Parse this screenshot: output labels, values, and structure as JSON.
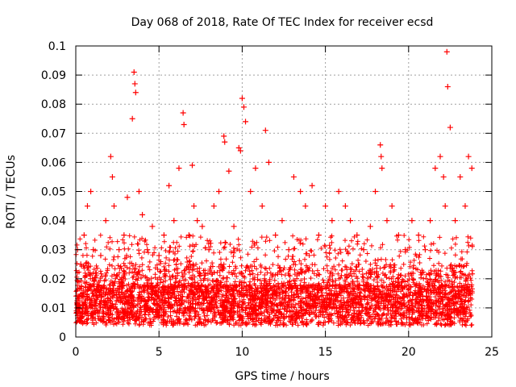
{
  "chart_data": {
    "type": "scatter",
    "title": "Day 068 of 2018, Rate Of TEC Index for receiver ecsd",
    "xlabel": "GPS time / hours",
    "ylabel": "ROTI / TECUs",
    "xlim": [
      0,
      25
    ],
    "ylim": [
      0,
      0.1
    ],
    "x_ticks": [
      "0",
      "5",
      "10",
      "15",
      "20",
      "25"
    ],
    "y_ticks": [
      "0",
      "0.01",
      "0.02",
      "0.03",
      "0.04",
      "0.05",
      "0.06",
      "0.07",
      "0.08",
      "0.09",
      "0.1"
    ],
    "grid": true,
    "marker": "+",
    "colors": {
      "series": "#ff0000",
      "grid": "#a0a0a0",
      "axis": "#000000"
    },
    "series": [
      {
        "x": [
          0.1,
          0.3,
          0.5,
          0.7,
          0.9,
          1.05,
          1.2,
          1.5,
          1.8,
          2.1,
          2.2,
          2.3,
          2.6,
          2.9,
          3.1,
          3.4,
          3.5,
          3.55,
          3.6,
          3.8,
          4.0,
          4.3,
          4.6,
          5.0,
          5.3,
          5.6,
          5.9,
          6.2,
          6.45,
          6.5,
          6.8,
          7.0,
          7.1,
          7.3,
          7.6,
          8.0,
          8.3,
          8.6,
          8.9,
          8.95,
          9.2,
          9.5,
          9.8,
          9.9,
          10.0,
          10.1,
          10.2,
          10.5,
          10.8,
          11.2,
          11.4,
          11.6,
          12.0,
          12.4,
          12.8,
          13.1,
          13.5,
          13.8,
          14.2,
          14.6,
          15.0,
          15.4,
          15.8,
          16.2,
          16.5,
          16.9,
          17.3,
          17.7,
          18.0,
          18.3,
          18.35,
          18.4,
          18.7,
          19.0,
          19.4,
          19.8,
          20.2,
          20.6,
          21.0,
          21.3,
          21.6,
          21.9,
          22.1,
          22.2,
          22.3,
          22.35,
          22.5,
          22.8,
          23.1,
          23.4,
          23.6,
          23.8
        ],
        "y": [
          0.03,
          0.025,
          0.035,
          0.045,
          0.05,
          0.03,
          0.022,
          0.028,
          0.04,
          0.062,
          0.055,
          0.045,
          0.03,
          0.035,
          0.048,
          0.075,
          0.091,
          0.087,
          0.084,
          0.05,
          0.042,
          0.03,
          0.038,
          0.028,
          0.035,
          0.052,
          0.04,
          0.058,
          0.077,
          0.073,
          0.035,
          0.059,
          0.045,
          0.04,
          0.038,
          0.03,
          0.045,
          0.05,
          0.069,
          0.067,
          0.057,
          0.038,
          0.065,
          0.064,
          0.082,
          0.079,
          0.074,
          0.05,
          0.058,
          0.045,
          0.071,
          0.06,
          0.035,
          0.04,
          0.03,
          0.055,
          0.05,
          0.045,
          0.052,
          0.035,
          0.045,
          0.04,
          0.05,
          0.045,
          0.04,
          0.035,
          0.03,
          0.038,
          0.05,
          0.066,
          0.062,
          0.058,
          0.04,
          0.045,
          0.035,
          0.03,
          0.04,
          0.035,
          0.03,
          0.04,
          0.058,
          0.062,
          0.055,
          0.045,
          0.098,
          0.086,
          0.072,
          0.04,
          0.055,
          0.045,
          0.062,
          0.058
        ]
      }
    ]
  }
}
